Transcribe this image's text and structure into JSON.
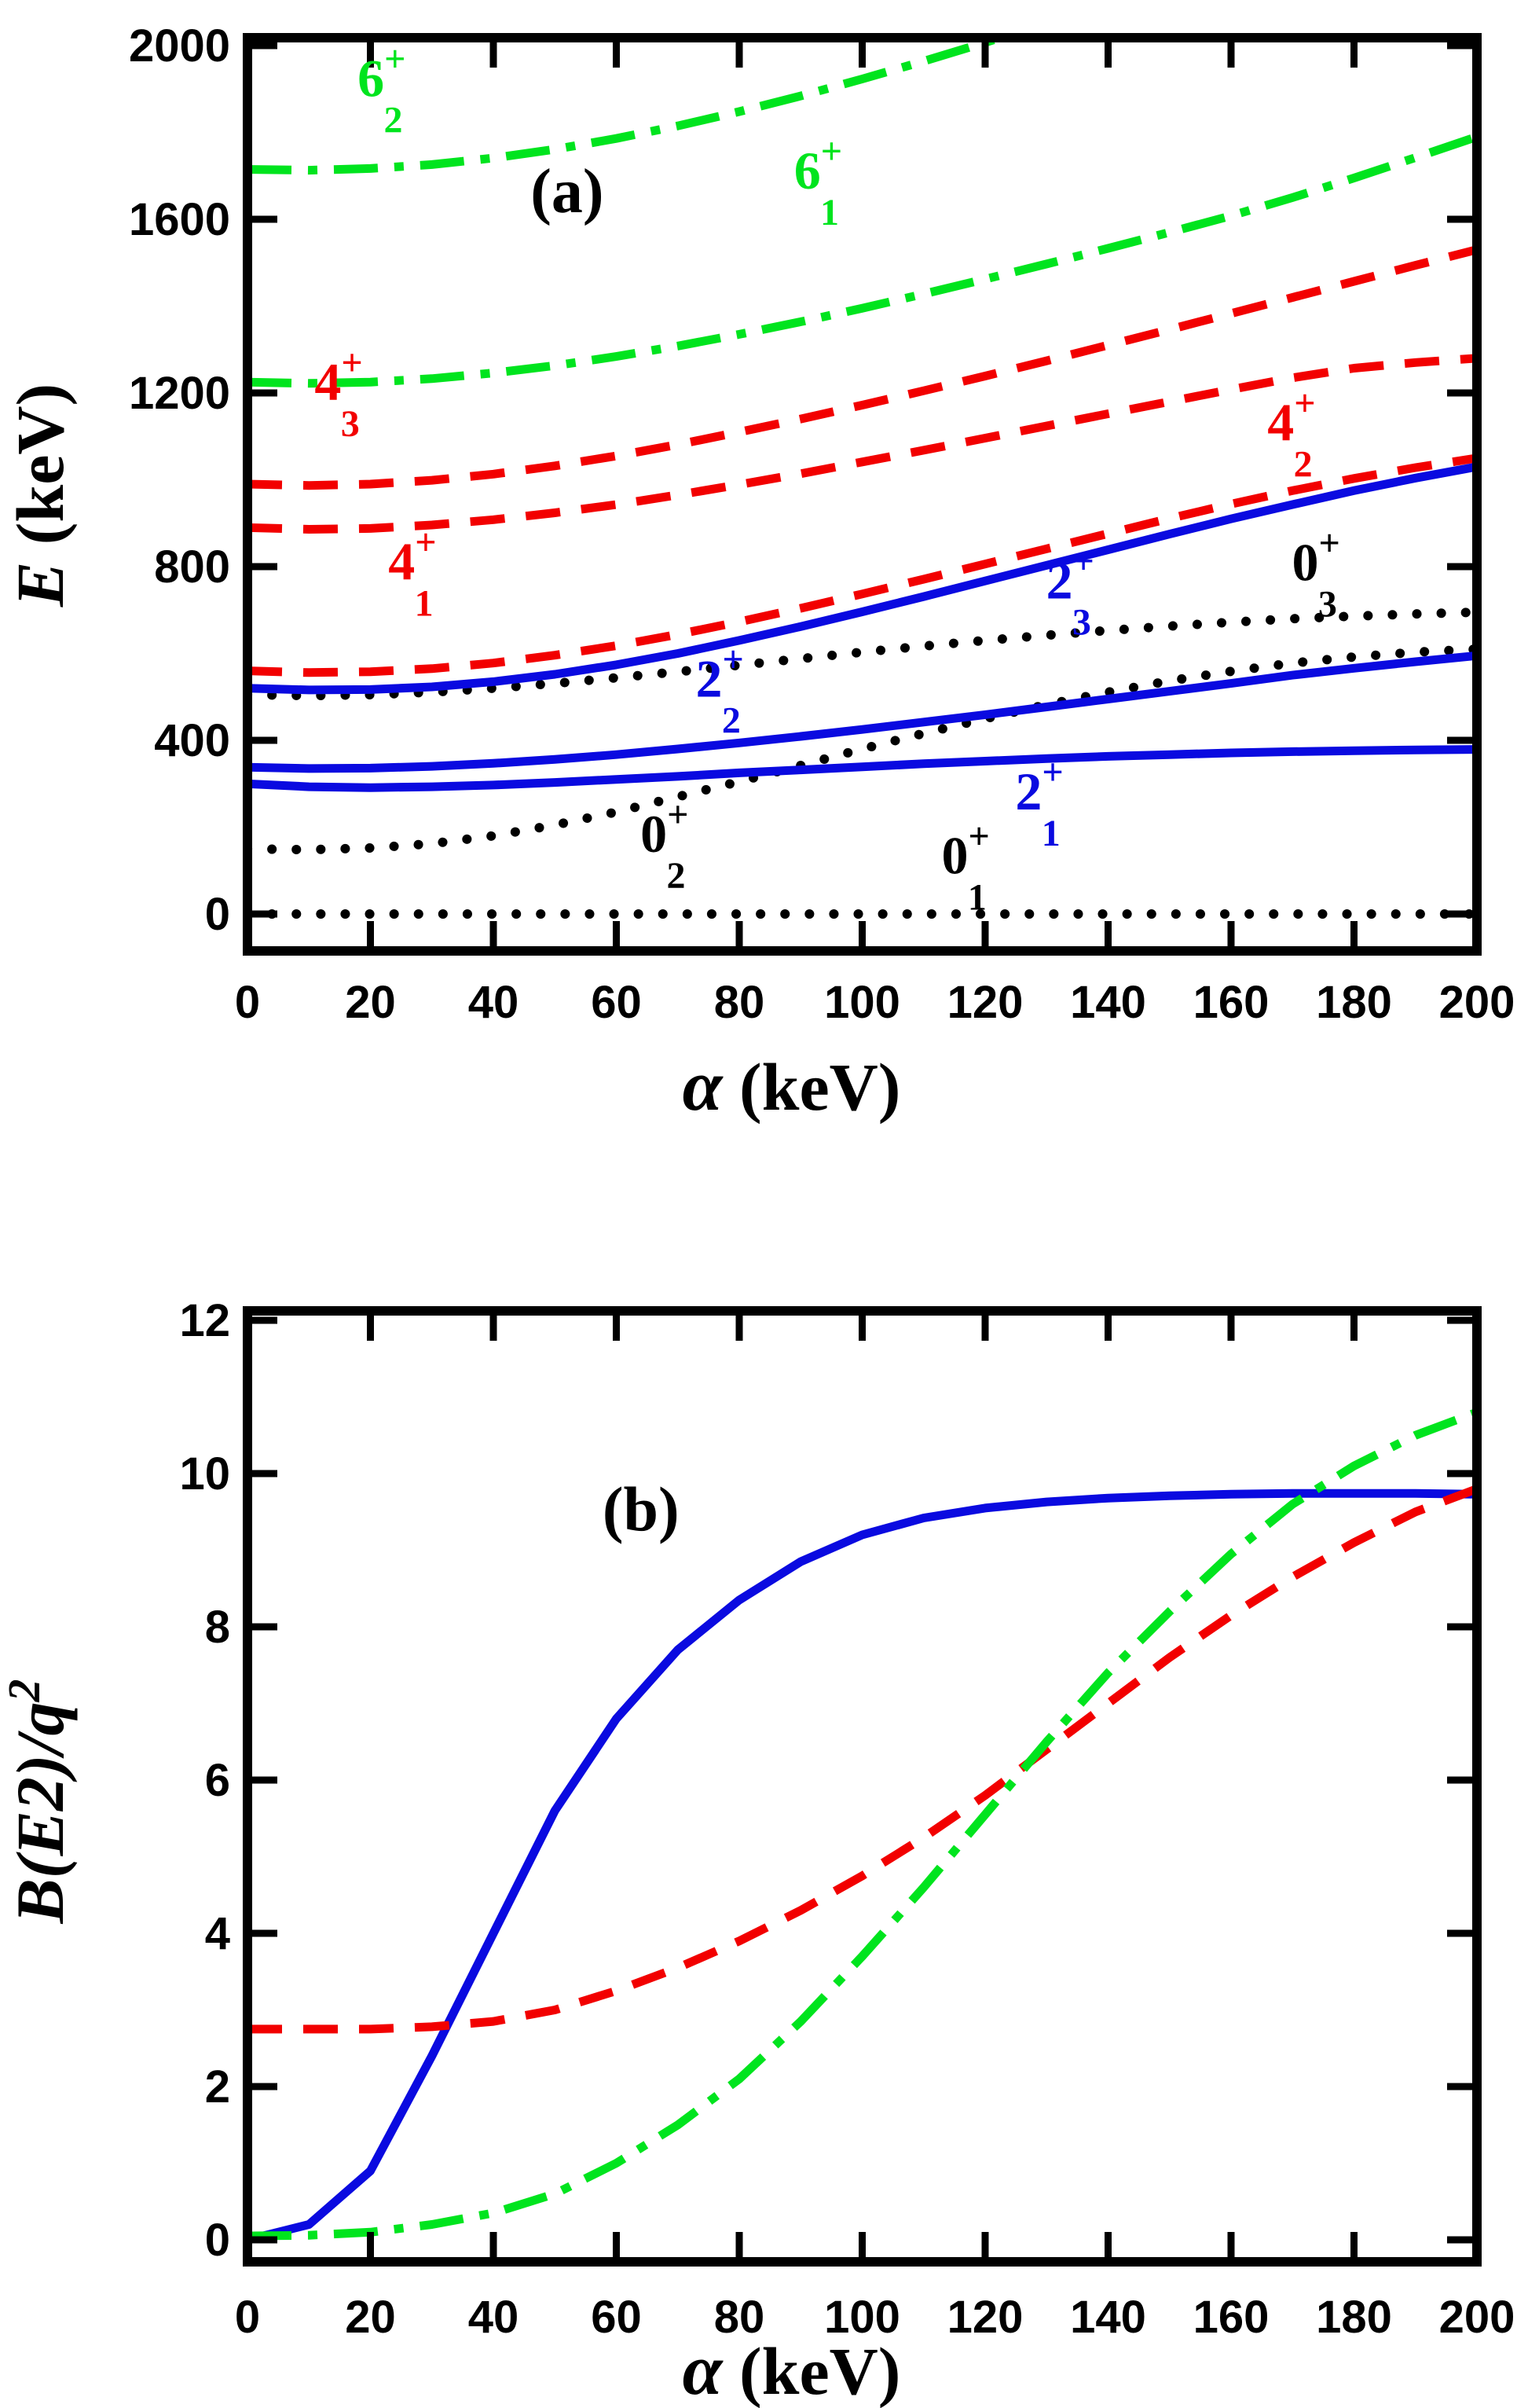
{
  "colors": {
    "black": "#000000",
    "blue": "#0a0ae0",
    "red": "#f20000",
    "green": "#00e41e",
    "background": "#ffffff"
  },
  "chart_data": [
    {
      "type": "line",
      "panel_label": "(a)",
      "xlabel": {
        "symbol": "α",
        "unit": " (keV)"
      },
      "ylabel": {
        "symbol": "E",
        "unit": " (keV)",
        "superscript": ""
      },
      "xlim": [
        0,
        200
      ],
      "ylim": [
        0,
        2000
      ],
      "x_ticks": [
        0,
        20,
        40,
        60,
        80,
        100,
        120,
        140,
        160,
        180,
        200
      ],
      "y_ticks": [
        0,
        400,
        800,
        1200,
        1600,
        2000
      ],
      "grid": false,
      "legend": "none",
      "series": [
        {
          "name": "level-0-1",
          "state": {
            "main": "0",
            "sup": "+",
            "sub": "1"
          },
          "color_key": "black",
          "style": "dotted",
          "x": [
            0,
            10,
            20,
            30,
            40,
            50,
            60,
            70,
            80,
            90,
            100,
            110,
            120,
            130,
            140,
            150,
            160,
            170,
            180,
            190,
            200
          ],
          "y": [
            0,
            0,
            0,
            0,
            0,
            0,
            0,
            0,
            0,
            0,
            0,
            0,
            0,
            0,
            0,
            0,
            0,
            0,
            0,
            0,
            0
          ],
          "label_at": {
            "x": 117,
            "y": 115
          }
        },
        {
          "name": "level-0-2",
          "state": {
            "main": "0",
            "sup": "+",
            "sub": "2"
          },
          "color_key": "black",
          "style": "dotted",
          "x": [
            0,
            10,
            20,
            30,
            40,
            50,
            60,
            70,
            80,
            90,
            100,
            110,
            120,
            130,
            140,
            150,
            160,
            170,
            180,
            190,
            200
          ],
          "y": [
            150,
            148,
            152,
            162,
            180,
            205,
            235,
            270,
            305,
            342,
            380,
            416,
            450,
            482,
            511,
            537,
            559,
            578,
            592,
            603,
            610
          ],
          "label_at": {
            "x": 68,
            "y": 165
          }
        },
        {
          "name": "level-0-3",
          "state": {
            "main": "0",
            "sup": "+",
            "sub": "3"
          },
          "color_key": "black",
          "style": "dotted",
          "x": [
            0,
            10,
            20,
            30,
            40,
            50,
            60,
            70,
            80,
            90,
            100,
            110,
            120,
            130,
            140,
            150,
            160,
            170,
            180,
            190,
            200
          ],
          "y": [
            505,
            503,
            505,
            511,
            520,
            531,
            544,
            558,
            573,
            588,
            603,
            617,
            630,
            642,
            653,
            663,
            672,
            680,
            686,
            691,
            695
          ],
          "label_at": {
            "x": 174,
            "y": 790
          }
        },
        {
          "name": "level-2-1",
          "state": {
            "main": "2",
            "sup": "+",
            "sub": "1"
          },
          "color_key": "blue",
          "style": "solid",
          "x": [
            0,
            10,
            20,
            30,
            40,
            50,
            60,
            70,
            80,
            90,
            100,
            110,
            120,
            130,
            140,
            150,
            160,
            170,
            180,
            190,
            200
          ],
          "y": [
            300,
            293,
            291,
            293,
            297,
            303,
            310,
            317,
            325,
            332,
            339,
            346,
            352,
            358,
            363,
            367,
            371,
            374,
            376,
            378,
            379
          ],
          "label_at": {
            "x": 129,
            "y": 262
          }
        },
        {
          "name": "level-2-2",
          "state": {
            "main": "2",
            "sup": "+",
            "sub": "2"
          },
          "color_key": "blue",
          "style": "solid",
          "x": [
            0,
            10,
            20,
            30,
            40,
            50,
            60,
            70,
            80,
            90,
            100,
            110,
            120,
            130,
            140,
            150,
            160,
            170,
            180,
            190,
            200
          ],
          "y": [
            338,
            335,
            336,
            340,
            347,
            356,
            367,
            380,
            394,
            409,
            425,
            442,
            459,
            477,
            495,
            513,
            531,
            550,
            566,
            581,
            595
          ],
          "label_at": {
            "x": 77,
            "y": 522
          }
        },
        {
          "name": "level-2-3",
          "state": {
            "main": "2",
            "sup": "+",
            "sub": "3"
          },
          "color_key": "blue",
          "style": "solid",
          "x": [
            0,
            10,
            20,
            30,
            40,
            50,
            60,
            70,
            80,
            90,
            100,
            110,
            120,
            130,
            140,
            150,
            160,
            170,
            180,
            190,
            200
          ],
          "y": [
            520,
            516,
            517,
            523,
            535,
            552,
            574,
            600,
            630,
            662,
            696,
            731,
            767,
            803,
            839,
            875,
            910,
            943,
            975,
            1004,
            1030
          ],
          "label_at": {
            "x": 134,
            "y": 748
          }
        },
        {
          "name": "level-4-1",
          "state": {
            "main": "4",
            "sup": "+",
            "sub": "1"
          },
          "color_key": "red",
          "style": "dashed",
          "x": [
            0,
            10,
            20,
            30,
            40,
            50,
            60,
            70,
            80,
            90,
            100,
            110,
            120,
            130,
            140,
            150,
            160,
            170,
            180,
            190,
            200
          ],
          "y": [
            560,
            556,
            558,
            565,
            578,
            596,
            618,
            644,
            673,
            704,
            737,
            771,
            806,
            841,
            876,
            911,
            944,
            975,
            1003,
            1028,
            1050
          ],
          "label_at": {
            "x": 27,
            "y": 792
          }
        },
        {
          "name": "level-4-2",
          "state": {
            "main": "4",
            "sup": "+",
            "sub": "2"
          },
          "color_key": "red",
          "style": "dashed",
          "x": [
            0,
            10,
            20,
            30,
            40,
            50,
            60,
            70,
            80,
            90,
            100,
            110,
            120,
            130,
            140,
            150,
            160,
            170,
            180,
            190,
            200
          ],
          "y": [
            890,
            886,
            888,
            896,
            908,
            924,
            943,
            965,
            989,
            1014,
            1041,
            1068,
            1096,
            1124,
            1152,
            1180,
            1208,
            1235,
            1257,
            1270,
            1280
          ],
          "label_at": {
            "x": 170,
            "y": 1112
          }
        },
        {
          "name": "level-4-3",
          "state": {
            "main": "4",
            "sup": "+",
            "sub": "3"
          },
          "color_key": "red",
          "style": "dashed",
          "x": [
            0,
            10,
            20,
            30,
            40,
            50,
            60,
            70,
            80,
            90,
            100,
            110,
            120,
            130,
            140,
            150,
            160,
            170,
            180,
            190,
            200
          ],
          "y": [
            990,
            987,
            990,
            999,
            1013,
            1032,
            1055,
            1081,
            1110,
            1140,
            1172,
            1205,
            1239,
            1274,
            1310,
            1346,
            1383,
            1420,
            1457,
            1494,
            1530
          ],
          "label_at": {
            "x": 15,
            "y": 1205
          }
        },
        {
          "name": "level-6-1",
          "state": {
            "main": "6",
            "sup": "+",
            "sub": "1"
          },
          "color_key": "green",
          "style": "dashdot",
          "x": [
            0,
            10,
            20,
            30,
            40,
            50,
            60,
            70,
            80,
            90,
            100,
            110,
            120,
            130,
            140,
            150,
            160,
            170,
            180,
            190,
            200
          ],
          "y": [
            1225,
            1222,
            1225,
            1233,
            1246,
            1263,
            1284,
            1308,
            1335,
            1364,
            1395,
            1428,
            1462,
            1497,
            1533,
            1570,
            1608,
            1650,
            1695,
            1742,
            1790
          ],
          "label_at": {
            "x": 93,
            "y": 1692
          }
        },
        {
          "name": "level-6-2",
          "state": {
            "main": "6",
            "sup": "+",
            "sub": "2"
          },
          "color_key": "green",
          "style": "dashdot",
          "x": [
            0,
            10,
            20,
            30,
            40,
            50,
            60,
            70,
            80,
            90,
            100,
            110,
            120,
            130
          ],
          "y": [
            1715,
            1713,
            1717,
            1726,
            1741,
            1761,
            1786,
            1815,
            1848,
            1884,
            1923,
            1964,
            2007,
            2052
          ],
          "label_at": {
            "x": 22,
            "y": 1905
          }
        }
      ],
      "annotations": [
        {
          "text": "(a)",
          "x": 52,
          "y": 1642,
          "color_key": "black"
        }
      ]
    },
    {
      "type": "line",
      "panel_label": "(b)",
      "xlabel": {
        "symbol": "α",
        "unit": " (keV)"
      },
      "ylabel": {
        "symbol": "B(E2)/q",
        "unit": "",
        "superscript": "2"
      },
      "xlim": [
        0,
        200
      ],
      "ylim": [
        0,
        12
      ],
      "x_ticks": [
        0,
        20,
        40,
        60,
        80,
        100,
        120,
        140,
        160,
        180,
        200
      ],
      "y_ticks": [
        0,
        2,
        4,
        6,
        8,
        10,
        12
      ],
      "grid": false,
      "legend": "none",
      "series": [
        {
          "name": "be2-blue-solid",
          "state": null,
          "color_key": "blue",
          "style": "solid",
          "x": [
            0,
            10,
            20,
            30,
            40,
            50,
            60,
            70,
            80,
            90,
            100,
            110,
            120,
            130,
            140,
            150,
            160,
            170,
            180,
            190,
            200
          ],
          "y": [
            0,
            0.2,
            0.9,
            2.4,
            4.0,
            5.6,
            6.8,
            7.7,
            8.35,
            8.85,
            9.2,
            9.42,
            9.55,
            9.63,
            9.68,
            9.71,
            9.73,
            9.74,
            9.74,
            9.74,
            9.73
          ],
          "label_at": null
        },
        {
          "name": "be2-red-dashed",
          "state": null,
          "color_key": "red",
          "style": "dashed",
          "x": [
            0,
            10,
            20,
            30,
            40,
            50,
            60,
            70,
            80,
            90,
            100,
            110,
            120,
            130,
            140,
            150,
            160,
            170,
            180,
            190,
            200
          ],
          "y": [
            2.75,
            2.75,
            2.75,
            2.78,
            2.85,
            3.0,
            3.25,
            3.55,
            3.9,
            4.3,
            4.75,
            5.25,
            5.8,
            6.4,
            7.0,
            7.6,
            8.15,
            8.65,
            9.1,
            9.5,
            9.8
          ],
          "label_at": null
        },
        {
          "name": "be2-green-dashdot",
          "state": null,
          "color_key": "green",
          "style": "dashdot",
          "x": [
            0,
            10,
            20,
            30,
            40,
            50,
            60,
            70,
            80,
            90,
            100,
            110,
            120,
            130,
            140,
            150,
            160,
            170,
            180,
            190,
            200
          ],
          "y": [
            0.05,
            0.06,
            0.1,
            0.2,
            0.35,
            0.6,
            1.0,
            1.5,
            2.1,
            2.85,
            3.7,
            4.6,
            5.55,
            6.5,
            7.4,
            8.2,
            8.95,
            9.6,
            10.1,
            10.5,
            10.8
          ],
          "label_at": null
        }
      ],
      "annotations": [
        {
          "text": "(b)",
          "x": 64,
          "y": 9.4,
          "color_key": "black"
        }
      ]
    }
  ]
}
